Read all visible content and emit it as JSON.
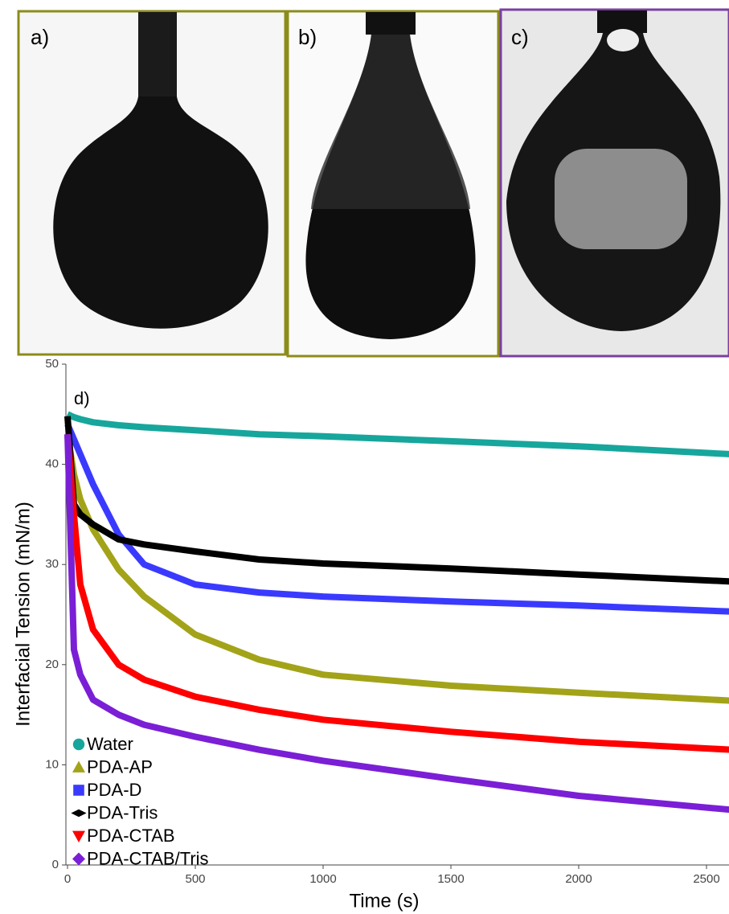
{
  "panels": [
    {
      "label": "a)"
    },
    {
      "label": "b)"
    },
    {
      "label": "c)"
    }
  ],
  "chart_data": {
    "type": "line",
    "panel_label": "d)",
    "x_label": "Time (s)",
    "y_label": "Interfacial Tension (mN/m)",
    "x": [
      0,
      25,
      50,
      100,
      200,
      300,
      500,
      750,
      1000,
      1500,
      2000,
      2600
    ],
    "series": [
      {
        "name": "Water",
        "color": "#17a69c",
        "marker": "circle",
        "values": [
          45,
          44.7,
          44.5,
          44.2,
          43.9,
          43.7,
          43.4,
          43,
          42.8,
          42.3,
          41.8,
          41
        ]
      },
      {
        "name": "PDA-AP",
        "color": "#a3a319",
        "marker": "triangle",
        "values": [
          43,
          39,
          36.5,
          33.5,
          29.5,
          26.8,
          23,
          20.5,
          19,
          17.9,
          17.2,
          16.4
        ]
      },
      {
        "name": "PDA-D",
        "color": "#3a3aff",
        "marker": "square",
        "values": [
          44,
          42.5,
          41,
          38,
          33,
          30,
          28,
          27.2,
          26.8,
          26.3,
          25.9,
          25.3
        ]
      },
      {
        "name": "PDA-Tris",
        "color": "#000000",
        "marker": "smalldiamond",
        "values": [
          44.8,
          36,
          35,
          34,
          32.5,
          32,
          31.3,
          30.5,
          30.1,
          29.6,
          29,
          28.3
        ]
      },
      {
        "name": "PDA-CTAB",
        "color": "#ff0000",
        "marker": "downtriangle",
        "values": [
          43,
          35,
          28,
          23.5,
          20,
          18.5,
          16.8,
          15.5,
          14.5,
          13.3,
          12.3,
          11.5
        ]
      },
      {
        "name": "PDA-CTAB/Tris",
        "color": "#7a1fd6",
        "marker": "diamond",
        "values": [
          43,
          21.5,
          19,
          16.5,
          15,
          14,
          12.8,
          11.5,
          10.4,
          8.6,
          6.9,
          5.5
        ]
      }
    ],
    "xlim": [
      0,
      2600
    ],
    "ylim": [
      0,
      50
    ],
    "xticks": [
      0,
      500,
      1000,
      1500,
      2000,
      2500
    ],
    "yticks": [
      0,
      10,
      20,
      30,
      40,
      50
    ],
    "grid": false,
    "legend": "lower left"
  }
}
